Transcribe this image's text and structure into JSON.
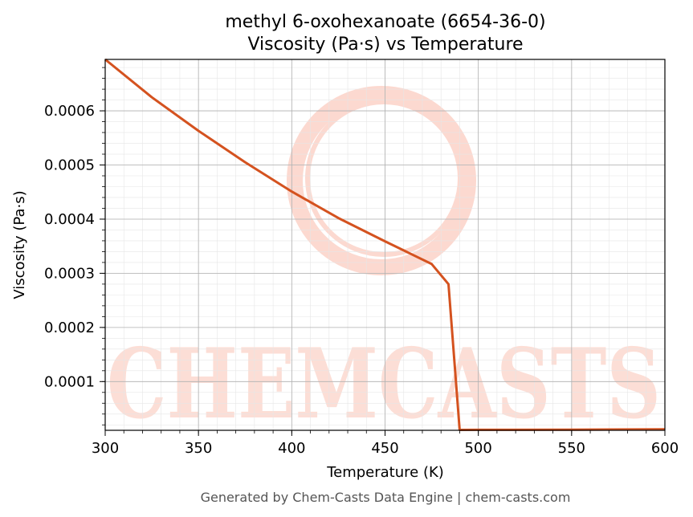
{
  "chart_data": {
    "type": "line",
    "title": "methyl 6-oxohexanoate (6654-36-0)",
    "subtitle": "Viscosity (Pa·s) vs Temperature",
    "xlabel": "Temperature (K)",
    "ylabel": "Viscosity (Pa·s)",
    "xlim": [
      300,
      600
    ],
    "ylim": [
      1e-05,
      0.000695
    ],
    "x_ticks": [
      300,
      350,
      400,
      450,
      500,
      550,
      600
    ],
    "y_ticks": [
      0.0001,
      0.0002,
      0.0003,
      0.0004,
      0.0005,
      0.0006
    ],
    "y_tick_labels": [
      "0.0001",
      "0.0002",
      "0.0003",
      "0.0004",
      "0.0005",
      "0.0006"
    ],
    "grid": true,
    "series": [
      {
        "color": "#d4521f",
        "x": [
          300,
          325,
          350,
          375,
          400,
          425,
          450,
          475,
          484,
          490,
          500,
          550,
          600
        ],
        "y": [
          0.000695,
          0.000625,
          0.000563,
          0.000505,
          0.000451,
          0.000402,
          0.000359,
          0.000317,
          0.00028,
          1.08e-05,
          1.09e-05,
          1.1e-05,
          1.2e-05
        ]
      }
    ]
  },
  "watermark": {
    "text": "CHEMCASTS",
    "color": "#fcd9d0"
  },
  "footer": "Generated by Chem-Casts Data Engine | chem-casts.com"
}
